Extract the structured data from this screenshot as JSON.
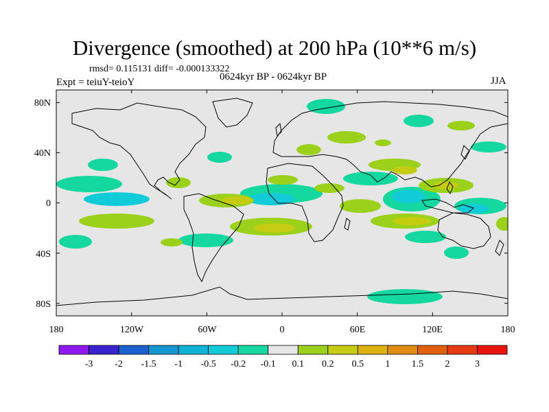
{
  "title": "Divergence (smoothed) at 200 hPa (10**6 m/s)",
  "stats_text": "rmsd= 0.115131 diff= -0.000133322",
  "experiment_label": "Expt = teiuY-teioY",
  "period_label": "0624kyr BP - 0624kyr BP",
  "season_label": "JJA",
  "axes": {
    "x_ticks": [
      "180",
      "120W",
      "60W",
      "0",
      "60E",
      "120E",
      "180"
    ],
    "x_tick_values": [
      -180,
      -120,
      -60,
      0,
      60,
      120,
      180
    ],
    "y_ticks": [
      "80N",
      "40N",
      "0",
      "40S",
      "80S"
    ],
    "y_tick_values": [
      80,
      40,
      0,
      -40,
      -80
    ]
  },
  "colorbar": {
    "labels": [
      "-3",
      "-2",
      "-1.5",
      "-1",
      "-0.5",
      "-0.2",
      "-0.1",
      "0.1",
      "0.2",
      "0.5",
      "1",
      "1.5",
      "2",
      "3"
    ],
    "colors": [
      "#8c1aee",
      "#3a22cc",
      "#1a5fcf",
      "#1496d2",
      "#0fb3d6",
      "#12cbd8",
      "#15d7a0",
      "#e6e6e6",
      "#9bd11a",
      "#c5cc12",
      "#dcb210",
      "#df8c10",
      "#e25f10",
      "#e63a10",
      "#e8120e"
    ]
  },
  "map": {
    "background_color": "#e6e6e6",
    "coast_color": "#000000",
    "positive_light": "#9bd11a",
    "positive_mid": "#c5cc12",
    "negative_light": "#15d7a0",
    "negative_mid": "#12cbd8"
  }
}
